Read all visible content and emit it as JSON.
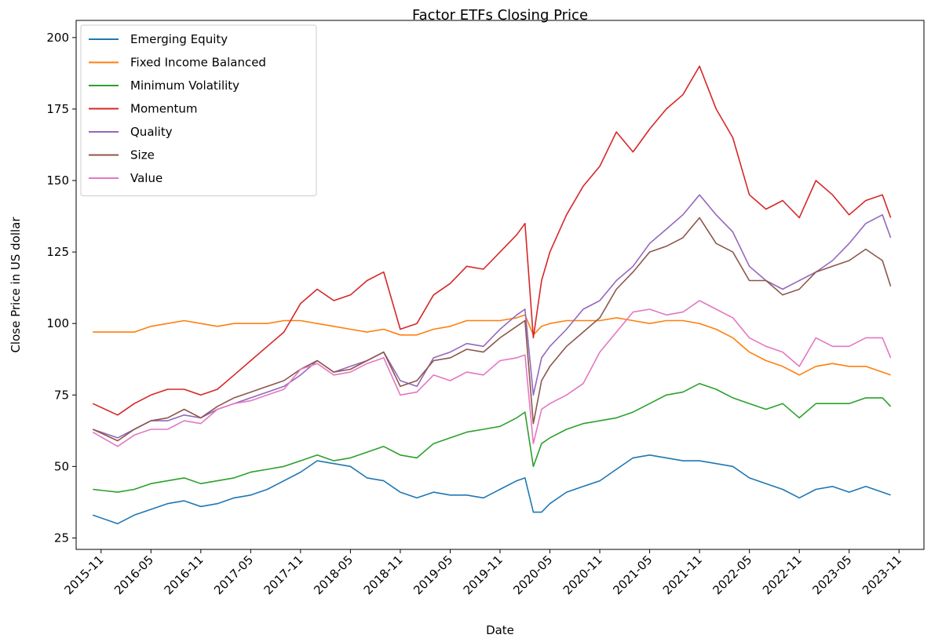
{
  "chart_data": {
    "type": "line",
    "title": "Factor ETFs Closing Price",
    "x_label": "Date",
    "y_label": "Close Price in US dollar",
    "x": [
      "2015-10",
      "2016-01",
      "2016-03",
      "2016-05",
      "2016-07",
      "2016-09",
      "2016-11",
      "2017-01",
      "2017-03",
      "2017-05",
      "2017-07",
      "2017-09",
      "2017-11",
      "2018-01",
      "2018-03",
      "2018-05",
      "2018-07",
      "2018-09",
      "2018-11",
      "2019-01",
      "2019-03",
      "2019-05",
      "2019-07",
      "2019-09",
      "2019-11",
      "2020-01",
      "2020-02",
      "2020-03",
      "2020-04",
      "2020-05",
      "2020-07",
      "2020-09",
      "2020-11",
      "2021-01",
      "2021-03",
      "2021-05",
      "2021-07",
      "2021-09",
      "2021-11",
      "2022-01",
      "2022-03",
      "2022-05",
      "2022-07",
      "2022-09",
      "2022-11",
      "2023-01",
      "2023-03",
      "2023-05",
      "2023-07",
      "2023-09",
      "2023-10"
    ],
    "series": [
      {
        "name": "Emerging Equity",
        "color": "#1f77b4",
        "values": [
          33,
          30,
          33,
          35,
          37,
          38,
          36,
          37,
          39,
          40,
          42,
          45,
          48,
          52,
          51,
          50,
          46,
          45,
          41,
          39,
          41,
          40,
          40,
          39,
          42,
          45,
          46,
          34,
          34,
          37,
          41,
          43,
          45,
          49,
          53,
          54,
          53,
          52,
          52,
          51,
          50,
          46,
          44,
          42,
          39,
          42,
          43,
          41,
          43,
          41,
          40
        ]
      },
      {
        "name": "Fixed Income Balanced",
        "color": "#ff7f0e",
        "values": [
          97,
          97,
          97,
          99,
          100,
          101,
          100,
          99,
          100,
          100,
          100,
          101,
          101,
          100,
          99,
          98,
          97,
          98,
          96,
          96,
          98,
          99,
          101,
          101,
          101,
          102,
          103,
          96,
          99,
          100,
          101,
          101,
          101,
          102,
          101,
          100,
          101,
          101,
          100,
          98,
          95,
          90,
          87,
          85,
          82,
          85,
          86,
          85,
          85,
          83,
          82
        ]
      },
      {
        "name": "Minimum Volatility",
        "color": "#2ca02c",
        "values": [
          42,
          41,
          42,
          44,
          45,
          46,
          44,
          45,
          46,
          48,
          49,
          50,
          52,
          54,
          52,
          53,
          55,
          57,
          54,
          53,
          58,
          60,
          62,
          63,
          64,
          67,
          69,
          50,
          58,
          60,
          63,
          65,
          66,
          67,
          69,
          72,
          75,
          76,
          79,
          77,
          74,
          72,
          70,
          72,
          67,
          72,
          72,
          72,
          74,
          74,
          71
        ]
      },
      {
        "name": "Momentum",
        "color": "#d62728",
        "values": [
          72,
          68,
          72,
          75,
          77,
          77,
          75,
          77,
          82,
          87,
          92,
          97,
          107,
          112,
          108,
          110,
          115,
          118,
          98,
          100,
          110,
          114,
          120,
          119,
          125,
          131,
          135,
          95,
          115,
          125,
          138,
          148,
          155,
          167,
          160,
          168,
          175,
          180,
          190,
          175,
          165,
          145,
          140,
          143,
          137,
          150,
          145,
          138,
          143,
          145,
          137
        ]
      },
      {
        "name": "Quality",
        "color": "#9467bd",
        "values": [
          63,
          60,
          63,
          66,
          66,
          68,
          67,
          70,
          72,
          74,
          76,
          78,
          82,
          87,
          83,
          85,
          87,
          90,
          80,
          78,
          88,
          90,
          93,
          92,
          98,
          103,
          105,
          75,
          88,
          92,
          98,
          105,
          108,
          115,
          120,
          128,
          133,
          138,
          145,
          138,
          132,
          120,
          115,
          112,
          115,
          118,
          122,
          128,
          135,
          138,
          130
        ]
      },
      {
        "name": "Size",
        "color": "#8c564b",
        "values": [
          63,
          59,
          63,
          66,
          67,
          70,
          67,
          71,
          74,
          76,
          78,
          80,
          84,
          87,
          83,
          84,
          87,
          90,
          78,
          80,
          87,
          88,
          91,
          90,
          95,
          99,
          101,
          65,
          80,
          85,
          92,
          97,
          102,
          112,
          118,
          125,
          127,
          130,
          137,
          128,
          125,
          115,
          115,
          110,
          112,
          118,
          120,
          122,
          126,
          122,
          113
        ]
      },
      {
        "name": "Value",
        "color": "#e377c2",
        "values": [
          62,
          57,
          61,
          63,
          63,
          66,
          65,
          70,
          72,
          73,
          75,
          77,
          84,
          86,
          82,
          83,
          86,
          88,
          75,
          76,
          82,
          80,
          83,
          82,
          87,
          88,
          89,
          58,
          70,
          72,
          75,
          79,
          90,
          97,
          104,
          105,
          103,
          104,
          108,
          105,
          102,
          95,
          92,
          90,
          85,
          95,
          92,
          92,
          95,
          95,
          88
        ]
      }
    ],
    "xlim": [
      "2015-08",
      "2024-02"
    ],
    "xticks": [
      "2015-11",
      "2016-05",
      "2016-11",
      "2017-05",
      "2017-11",
      "2018-05",
      "2018-11",
      "2019-05",
      "2019-11",
      "2020-05",
      "2020-11",
      "2021-05",
      "2021-11",
      "2022-05",
      "2022-11",
      "2023-05",
      "2023-11"
    ],
    "ylim": [
      21,
      206
    ],
    "yticks": [
      25,
      50,
      75,
      100,
      125,
      150,
      175,
      200
    ],
    "grid": false,
    "legend": "upper left"
  }
}
